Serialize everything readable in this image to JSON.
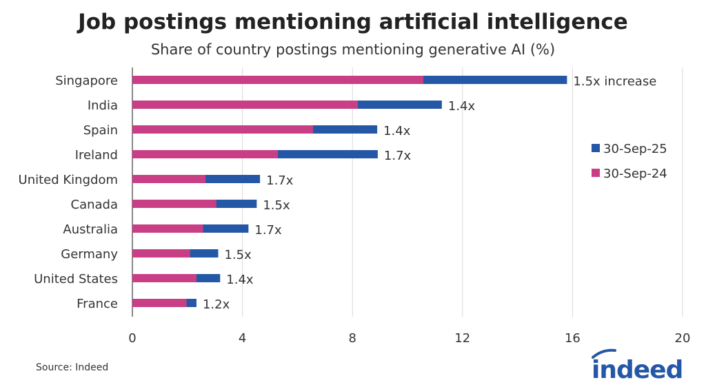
{
  "chart_data": {
    "type": "bar",
    "orientation": "horizontal",
    "stacked_overlay": true,
    "title": "Job postings mentioning artificial intelligence",
    "subtitle": "Share of country postings mentioning generative AI (%)",
    "categories": [
      "Singapore",
      "India",
      "Spain",
      "Ireland",
      "United Kingdom",
      "Canada",
      "Australia",
      "Germany",
      "United States",
      "France"
    ],
    "series": [
      {
        "name": "30-Sep-25",
        "color": "#2557a7",
        "values": [
          15.8,
          11.25,
          8.9,
          8.92,
          4.64,
          4.52,
          4.22,
          3.12,
          3.19,
          2.33
        ]
      },
      {
        "name": "30-Sep-24",
        "color": "#c83f85",
        "values": [
          10.58,
          8.2,
          6.57,
          5.29,
          2.66,
          3.05,
          2.57,
          2.1,
          2.33,
          1.97
        ]
      }
    ],
    "data_labels": [
      "1.5x increase",
      "1.4x",
      "1.4x",
      "1.7x",
      "1.7x",
      "1.5x",
      "1.7x",
      "1.5x",
      "1.4x",
      "1.2x"
    ],
    "xlim": [
      0,
      20
    ],
    "xticks": [
      "0",
      "4",
      "8",
      "12",
      "16",
      "20"
    ],
    "grid": true,
    "legend": "right"
  },
  "source": "Source: Indeed",
  "logo": "indeed"
}
